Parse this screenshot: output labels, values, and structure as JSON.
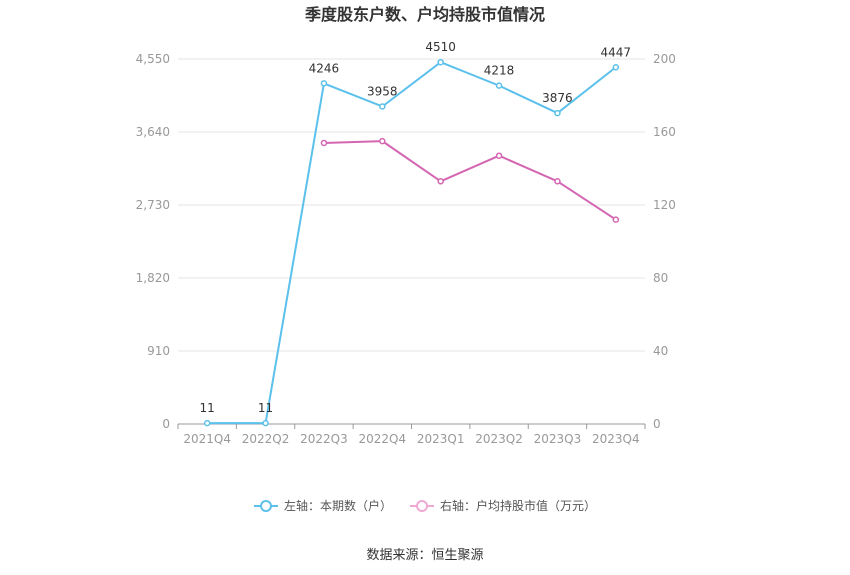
{
  "chart_data": {
    "type": "line",
    "title": "季度股东户数、户均持股市值情况",
    "categories": [
      "2021Q4",
      "2022Q2",
      "2022Q3",
      "2022Q4",
      "2023Q1",
      "2023Q2",
      "2023Q3",
      "2023Q4"
    ],
    "left_axis": {
      "ticks": [
        "0",
        "910",
        "1,820",
        "2,730",
        "3,640",
        "4,550"
      ],
      "range": [
        0,
        4550
      ]
    },
    "right_axis": {
      "ticks": [
        "0",
        "40",
        "80",
        "120",
        "160",
        "200"
      ],
      "range": [
        0,
        200
      ]
    },
    "series": [
      {
        "name": "左轴：本期数（户）",
        "axis": "left",
        "color": "#5bc0eb",
        "values": [
          11,
          11,
          4246,
          3958,
          4510,
          4218,
          3876,
          4447
        ],
        "labels": [
          "11",
          "11",
          "4246",
          "3958",
          "4510",
          "4218",
          "3876",
          "4447"
        ]
      },
      {
        "name": "右轴：户均持股市值（万元）",
        "axis": "right",
        "color": "#d466b1",
        "values": [
          null,
          null,
          154,
          155,
          133,
          147,
          133,
          112
        ]
      }
    ],
    "grid": true,
    "legend_position": "bottom"
  },
  "source": "数据来源：恒生聚源"
}
